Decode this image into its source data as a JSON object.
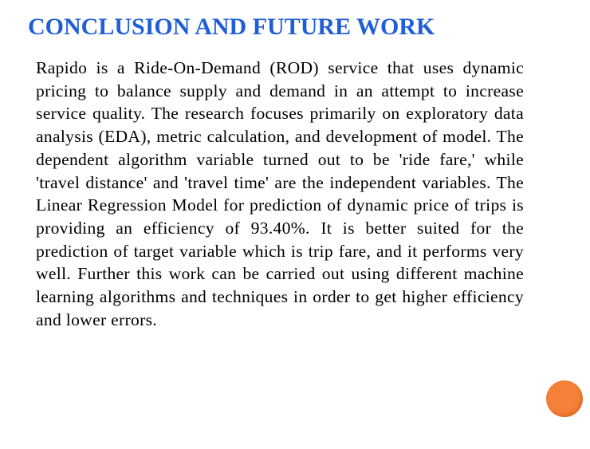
{
  "slide": {
    "title": "CONCLUSION AND FUTURE WORK",
    "body": "Rapido is a Ride-On-Demand (ROD) service that uses dynamic pricing to balance supply and demand in an attempt to increase service quality. The research focuses primarily on exploratory data analysis (EDA), metric calculation, and development of model. The dependent algorithm variable turned out to be 'ride fare,' while 'travel distance' and 'travel time' are the independent variables. The Linear Regression Model for prediction of dynamic price of trips is providing an efficiency of 93.40%. It is better suited for the prediction of target variable which is trip fare, and it performs very well. Further this work can be carried out using different machine learning algorithms and techniques in order to get higher efficiency and lower errors."
  },
  "colors": {
    "title": "#1f5ed8",
    "body_text": "#000000",
    "accent_dot": "#f5803a",
    "background": "#ffffff"
  },
  "decorations": {
    "accent_dot_icon": "orange-circle-icon"
  }
}
